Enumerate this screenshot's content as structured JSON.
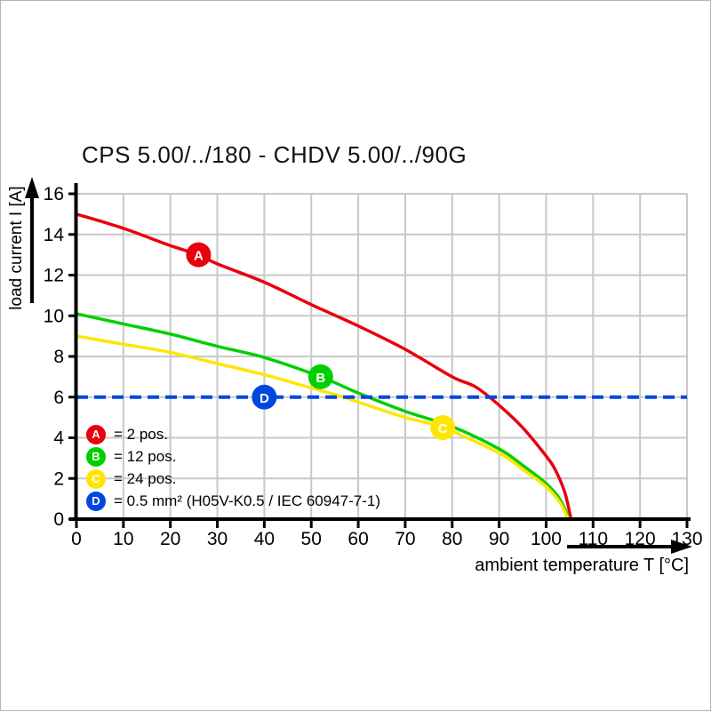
{
  "title": "CPS 5.00/../180 - CHDV 5.00/../90G",
  "colors": {
    "red": "#e8000e",
    "green": "#00cf00",
    "yellow": "#ffe600",
    "blue": "#0047e0",
    "grid": "#c8c8c8",
    "axis": "#000000"
  },
  "chart_data": {
    "type": "line",
    "title": "CPS 5.00/../180 - CHDV 5.00/../90G",
    "xlabel": "ambient temperature T [°C]",
    "ylabel": "load current I [A]",
    "xlim": [
      0,
      130
    ],
    "ylim": [
      0,
      16
    ],
    "x_ticks": [
      0,
      10,
      20,
      30,
      40,
      50,
      60,
      70,
      80,
      90,
      100,
      110,
      120,
      130
    ],
    "y_ticks": [
      0,
      2,
      4,
      6,
      8,
      10,
      12,
      14,
      16
    ],
    "grid": true,
    "legend_position": "inside-lower-left",
    "series": [
      {
        "id": "A",
        "name": "2 pos.",
        "color": "#e8000e",
        "style": "solid",
        "marker_at": {
          "x": 26,
          "y": 13
        },
        "points": [
          [
            0,
            15
          ],
          [
            10,
            14.3
          ],
          [
            20,
            13.45
          ],
          [
            26,
            13
          ],
          [
            30,
            12.55
          ],
          [
            40,
            11.65
          ],
          [
            50,
            10.55
          ],
          [
            60,
            9.5
          ],
          [
            70,
            8.35
          ],
          [
            80,
            7.0
          ],
          [
            85,
            6.5
          ],
          [
            90,
            5.6
          ],
          [
            95,
            4.5
          ],
          [
            100,
            3.1
          ],
          [
            102,
            2.4
          ],
          [
            104,
            1.3
          ],
          [
            105.3,
            0
          ]
        ]
      },
      {
        "id": "B",
        "name": "12 pos.",
        "color": "#00cf00",
        "style": "solid",
        "marker_at": {
          "x": 52,
          "y": 7
        },
        "points": [
          [
            0,
            10.1
          ],
          [
            10,
            9.6
          ],
          [
            20,
            9.1
          ],
          [
            30,
            8.5
          ],
          [
            40,
            7.95
          ],
          [
            52,
            7.0
          ],
          [
            60,
            6.2
          ],
          [
            70,
            5.3
          ],
          [
            80,
            4.55
          ],
          [
            90,
            3.45
          ],
          [
            95,
            2.65
          ],
          [
            100,
            1.75
          ],
          [
            103,
            0.95
          ],
          [
            104.9,
            0
          ]
        ]
      },
      {
        "id": "C",
        "name": "24 pos.",
        "color": "#ffe600",
        "style": "solid",
        "marker_at": {
          "x": 78,
          "y": 4.5
        },
        "points": [
          [
            0,
            9.0
          ],
          [
            10,
            8.6
          ],
          [
            20,
            8.2
          ],
          [
            30,
            7.65
          ],
          [
            40,
            7.1
          ],
          [
            50,
            6.45
          ],
          [
            57,
            6.0
          ],
          [
            60,
            5.75
          ],
          [
            70,
            5.0
          ],
          [
            78,
            4.5
          ],
          [
            90,
            3.25
          ],
          [
            95,
            2.45
          ],
          [
            100,
            1.6
          ],
          [
            103,
            0.8
          ],
          [
            104.7,
            0
          ]
        ]
      },
      {
        "id": "D",
        "name": "0.5 mm² (H05V-K0.5 / IEC 60947-7-1)",
        "color": "#0047e0",
        "style": "dashed",
        "marker_at": {
          "x": 40,
          "y": 6
        },
        "points": [
          [
            0,
            6
          ],
          [
            130,
            6
          ]
        ]
      }
    ],
    "legend": [
      {
        "id": "A",
        "color": "#e8000e",
        "text": "= 2 pos."
      },
      {
        "id": "B",
        "color": "#00cf00",
        "text": "= 12 pos."
      },
      {
        "id": "C",
        "color": "#ffe600",
        "text": "= 24 pos."
      },
      {
        "id": "D",
        "color": "#0047e0",
        "text": "= 0.5 mm² (H05V-K0.5 / IEC 60947-7-1)"
      }
    ]
  }
}
